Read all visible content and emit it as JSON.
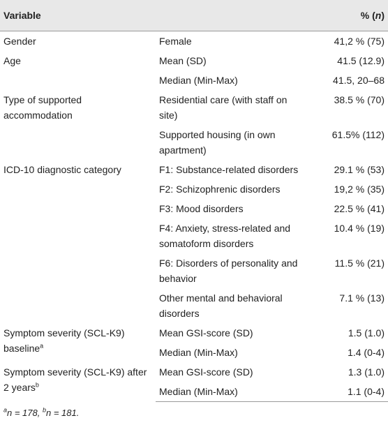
{
  "header": {
    "variable": "Variable",
    "value": {
      "prefix": "% (",
      "italic": "n",
      "suffix": ")"
    }
  },
  "groups": [
    {
      "label": "Gender",
      "rows": [
        {
          "item": "Female",
          "value": "41,2 % (75)"
        }
      ]
    },
    {
      "label": "Age",
      "rows": [
        {
          "item": "Mean (SD)",
          "value": "41.5 (12.9)"
        },
        {
          "item": "Median (Min-Max)",
          "value": "41.5, 20–68"
        }
      ]
    },
    {
      "label": "Type of supported accommodation",
      "rows": [
        {
          "item": "Residential care (with staff on site)",
          "value": "38.5 % (70)"
        },
        {
          "item": "Supported housing (in own apartment)",
          "value": "61.5% (112)"
        }
      ]
    },
    {
      "label": "ICD-10 diagnostic category",
      "rows": [
        {
          "item": "F1: Substance-related disorders",
          "value": "29.1 % (53)"
        },
        {
          "item": "F2: Schizophrenic disorders",
          "value": "19,2 % (35)"
        },
        {
          "item": "F3: Mood disorders",
          "value": "22.5 % (41)"
        },
        {
          "item": "F4: Anxiety, stress-related and somatoform disorders",
          "value": "10.4 % (19)"
        },
        {
          "item": "F6: Disorders of personality and behavior",
          "value": "11.5 % (21)"
        },
        {
          "item": "Other mental and behavioral disorders",
          "value": "7.1 % (13)"
        }
      ]
    },
    {
      "label": "Symptom severity (SCL-K9) baseline",
      "label_sup": "a",
      "rows": [
        {
          "item": "Mean GSI-score (SD)",
          "value": "1.5 (1.0)"
        },
        {
          "item": "Median (Min-Max)",
          "value": "1.4 (0-4)"
        }
      ]
    },
    {
      "label": "Symptom severity (SCL-K9) after 2 years",
      "label_sup": "b",
      "rows": [
        {
          "item": "Mean GSI-score (SD)",
          "value": "1.3 (1.0)"
        },
        {
          "item": "Median (Min-Max)",
          "value": "1.1 (0-4)"
        }
      ]
    }
  ],
  "footnote": [
    {
      "sup": "a",
      "text": "n = 178, "
    },
    {
      "sup": "b",
      "text": "n = 181."
    }
  ]
}
